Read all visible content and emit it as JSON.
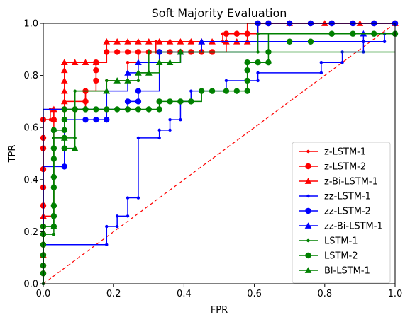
{
  "chart_data": {
    "type": "line",
    "title": "Soft Majority Evaluation",
    "xlabel": "FPR",
    "ylabel": "TPR",
    "xlim": [
      0.0,
      1.0
    ],
    "ylim": [
      0.0,
      1.0
    ],
    "xticks": [
      "0.0",
      "0.2",
      "0.4",
      "0.6",
      "0.8",
      "1.0"
    ],
    "yticks": [
      "0.0",
      "0.2",
      "0.4",
      "0.6",
      "0.8",
      "1.0"
    ],
    "grid": false,
    "legend_position": "lower-right",
    "diagonal": {
      "style": "dashed",
      "color": "#ff0000",
      "x": [
        0,
        1
      ],
      "y": [
        0,
        1
      ]
    },
    "series": [
      {
        "name": "z-LSTM-1",
        "color": "#ff0000",
        "marker": "point",
        "x": [
          0,
          0,
          0.02,
          0.02,
          0.06,
          0.06,
          0.12,
          0.12,
          0.18,
          0.18,
          0.24,
          0.24,
          0.27,
          0.27,
          0.32,
          0.32,
          0.36,
          0.36,
          0.51,
          0.51,
          0.61,
          0.61,
          1.0
        ],
        "y": [
          0,
          0.63,
          0.63,
          0.67,
          0.67,
          0.7,
          0.7,
          0.74,
          0.74,
          0.78,
          0.78,
          0.85,
          0.85,
          0.89,
          0.89,
          0.93,
          0.93,
          0.93,
          0.93,
          0.96,
          0.96,
          1.0,
          1.0
        ]
      },
      {
        "name": "z-LSTM-2",
        "color": "#ff0000",
        "marker": "circle",
        "x": [
          0,
          0,
          0.03,
          0.03,
          0.12,
          0.12,
          0.15,
          0.15,
          0.18,
          0.18,
          0.52,
          0.52,
          0.61,
          0.61,
          1.0
        ],
        "y": [
          0,
          0.63,
          0.63,
          0.67,
          0.67,
          0.74,
          0.74,
          0.85,
          0.85,
          0.89,
          0.89,
          0.96,
          0.96,
          1.0,
          1.0
        ],
        "mx": [
          0,
          0,
          0,
          0,
          0,
          0,
          0,
          0,
          0,
          0,
          0,
          0,
          0.03,
          0.06,
          0.09,
          0.12,
          0.12,
          0.15,
          0.15,
          0.15,
          0.18,
          0.21,
          0.24,
          0.27,
          0.3,
          0.33,
          0.36,
          0.39,
          0.42,
          0.45,
          0.48,
          0.52,
          0.55,
          0.58,
          0.61,
          0.64,
          0.7,
          0.76,
          0.82,
          0.88,
          0.94,
          1.0
        ],
        "my": [
          0.04,
          0.07,
          0.11,
          0.15,
          0.19,
          0.22,
          0.3,
          0.37,
          0.44,
          0.52,
          0.56,
          0.63,
          0.63,
          0.67,
          0.67,
          0.7,
          0.74,
          0.78,
          0.82,
          0.85,
          0.89,
          0.89,
          0.89,
          0.89,
          0.89,
          0.89,
          0.89,
          0.89,
          0.89,
          0.89,
          0.89,
          0.96,
          0.96,
          0.96,
          1.0,
          1.0,
          1.0,
          1.0,
          1.0,
          1.0,
          1.0,
          1.0
        ]
      },
      {
        "name": "z-Bi-LSTM-1",
        "color": "#ff0000",
        "marker": "triangle",
        "x": [
          0,
          0,
          0.03,
          0.03,
          0.06,
          0.06,
          0.18,
          0.18,
          0.58,
          0.58,
          1.0
        ],
        "y": [
          0,
          0.26,
          0.26,
          0.67,
          0.67,
          0.85,
          0.85,
          0.93,
          0.93,
          1.0,
          1.0
        ],
        "mx": [
          0,
          0,
          0.03,
          0.03,
          0.06,
          0.06,
          0.06,
          0.06,
          0.06,
          0.06,
          0.09,
          0.12,
          0.15,
          0.18,
          0.21,
          0.24,
          0.27,
          0.3,
          0.33,
          0.36,
          0.39,
          0.42,
          0.45,
          0.48,
          0.52,
          0.55,
          0.58,
          0.7,
          0.8,
          0.9,
          1.0
        ],
        "my": [
          0.11,
          0.26,
          0.63,
          0.67,
          0.7,
          0.74,
          0.78,
          0.82,
          0.85,
          0.85,
          0.85,
          0.85,
          0.85,
          0.93,
          0.93,
          0.93,
          0.93,
          0.93,
          0.93,
          0.93,
          0.93,
          0.93,
          0.93,
          0.93,
          0.93,
          0.93,
          0.93,
          1.0,
          1.0,
          1.0,
          1.0
        ]
      },
      {
        "name": "zz-LSTM-1",
        "color": "#0000ff",
        "marker": "point",
        "x": [
          0,
          0,
          0.18,
          0.18,
          0.21,
          0.21,
          0.24,
          0.24,
          0.27,
          0.27,
          0.33,
          0.33,
          0.36,
          0.36,
          0.39,
          0.39,
          0.42,
          0.42,
          0.52,
          0.52,
          0.61,
          0.61,
          0.79,
          0.79,
          0.85,
          0.85,
          0.91,
          0.91,
          0.97,
          0.97,
          1.0
        ],
        "y": [
          0,
          0.15,
          0.15,
          0.22,
          0.22,
          0.26,
          0.26,
          0.33,
          0.33,
          0.56,
          0.56,
          0.59,
          0.59,
          0.63,
          0.63,
          0.7,
          0.7,
          0.74,
          0.74,
          0.78,
          0.78,
          0.81,
          0.81,
          0.85,
          0.85,
          0.89,
          0.89,
          0.93,
          0.93,
          0.96,
          0.96
        ]
      },
      {
        "name": "zz-LSTM-2",
        "color": "#0000ff",
        "marker": "circle",
        "x": [
          0,
          0,
          0.06,
          0.06,
          0.12,
          0.12,
          0.18,
          0.18,
          0.24,
          0.24,
          0.27,
          0.27,
          0.33,
          0.33,
          0.61,
          0.61,
          1.0
        ],
        "y": [
          0,
          0.45,
          0.45,
          0.63,
          0.63,
          0.63,
          0.63,
          0.67,
          0.67,
          0.7,
          0.7,
          0.74,
          0.74,
          0.89,
          0.89,
          1.0,
          1.0
        ],
        "mx": [
          0.06,
          0.12,
          0.15,
          0.18,
          0.24,
          0.27,
          0.27,
          0.33,
          0.61,
          0.64,
          0.7,
          0.76,
          0.82,
          0.88,
          0.94,
          1.0
        ],
        "my": [
          0.45,
          0.63,
          0.63,
          0.63,
          0.7,
          0.7,
          0.74,
          0.89,
          1.0,
          1.0,
          1.0,
          1.0,
          1.0,
          1.0,
          1.0,
          1.0
        ]
      },
      {
        "name": "zz-Bi-LSTM-1",
        "color": "#0000ff",
        "marker": "triangle",
        "x": [
          0,
          0,
          0.18,
          0.18,
          0.24,
          0.24,
          0.27,
          0.27,
          0.39,
          0.39,
          0.45,
          0.45,
          0.91,
          0.91,
          1.0
        ],
        "y": [
          0,
          0.67,
          0.67,
          0.74,
          0.74,
          0.81,
          0.81,
          0.85,
          0.85,
          0.89,
          0.89,
          0.93,
          0.93,
          0.96,
          0.96
        ],
        "mx": [
          0.18,
          0.24,
          0.27,
          0.39,
          0.45,
          0.91
        ],
        "my": [
          0.74,
          0.81,
          0.85,
          0.89,
          0.93,
          0.96
        ]
      },
      {
        "name": "LSTM-1",
        "color": "#008000",
        "marker": "point",
        "x": [
          0,
          0,
          0.03,
          0.03,
          0.09,
          0.09,
          0.18,
          0.18,
          0.27,
          0.27,
          0.3,
          0.3,
          0.61,
          0.61,
          1.0
        ],
        "y": [
          0,
          0.19,
          0.19,
          0.56,
          0.56,
          0.74,
          0.74,
          0.78,
          0.78,
          0.81,
          0.81,
          0.89,
          0.89,
          0.96,
          0.96
        ]
      },
      {
        "name": "LSTM-2",
        "color": "#008000",
        "marker": "circle",
        "x": [
          0,
          0,
          0.03,
          0.03,
          0.06,
          0.06,
          0.33,
          0.33,
          0.45,
          0.45,
          0.58,
          0.58,
          0.64,
          0.64,
          1.0
        ],
        "y": [
          0,
          0.22,
          0.22,
          0.59,
          0.59,
          0.67,
          0.67,
          0.7,
          0.7,
          0.74,
          0.74,
          0.85,
          0.85,
          0.96,
          0.96
        ],
        "mx": [
          0,
          0,
          0,
          0,
          0,
          0,
          0.03,
          0.03,
          0.03,
          0.03,
          0.03,
          0.03,
          0.03,
          0.03,
          0.06,
          0.06,
          0.06,
          0.06,
          0.06,
          0.09,
          0.12,
          0.15,
          0.18,
          0.21,
          0.24,
          0.27,
          0.3,
          0.33,
          0.33,
          0.36,
          0.39,
          0.42,
          0.45,
          0.48,
          0.52,
          0.55,
          0.58,
          0.58,
          0.58,
          0.58,
          0.61,
          0.64,
          0.64,
          0.7,
          0.76,
          0.82,
          0.88,
          0.94,
          1.0
        ],
        "my": [
          0.04,
          0.07,
          0.11,
          0.15,
          0.19,
          0.22,
          0.22,
          0.26,
          0.3,
          0.37,
          0.41,
          0.48,
          0.52,
          0.59,
          0.59,
          0.63,
          0.67,
          0.52,
          0.56,
          0.67,
          0.67,
          0.67,
          0.67,
          0.67,
          0.67,
          0.67,
          0.67,
          0.67,
          0.7,
          0.7,
          0.7,
          0.7,
          0.74,
          0.74,
          0.74,
          0.74,
          0.74,
          0.78,
          0.82,
          0.85,
          0.85,
          0.85,
          0.89,
          0.93,
          0.93,
          0.96,
          0.96,
          0.96,
          0.96
        ]
      },
      {
        "name": "Bi-LSTM-1",
        "color": "#008000",
        "marker": "triangle",
        "x": [
          0,
          0,
          0.03,
          0.03,
          0.06,
          0.06,
          0.09,
          0.09,
          0.18,
          0.18,
          0.27,
          0.27,
          0.33,
          0.33,
          0.39,
          0.39,
          1.0
        ],
        "y": [
          0,
          0.22,
          0.22,
          0.56,
          0.56,
          0.52,
          0.52,
          0.74,
          0.74,
          0.78,
          0.78,
          0.81,
          0.81,
          0.85,
          0.85,
          0.89,
          0.89
        ],
        "mx": [
          0.03,
          0.06,
          0.09,
          0.18,
          0.21,
          0.24,
          0.27,
          0.3,
          0.33,
          0.36,
          0.39
        ],
        "my": [
          0.22,
          0.56,
          0.52,
          0.74,
          0.78,
          0.78,
          0.81,
          0.81,
          0.85,
          0.85,
          0.89
        ]
      }
    ]
  }
}
